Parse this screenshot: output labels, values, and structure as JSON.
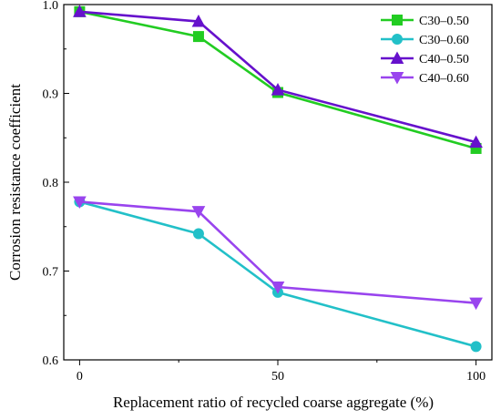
{
  "chart_data": {
    "type": "line",
    "title": "",
    "xlabel": "Replacement ratio of recycled coarse aggregate (%)",
    "ylabel": "Corrosion resistance coefficient",
    "x": [
      0,
      30,
      50,
      100
    ],
    "xticks": [
      0,
      50,
      100
    ],
    "xlim": [
      -4,
      104
    ],
    "ylim": [
      0.6,
      1.0
    ],
    "yticks": [
      0.6,
      0.7,
      0.8,
      0.9,
      1.0
    ],
    "ytick_labels": [
      "0.6",
      "0.7",
      "0.8",
      "0.9",
      "1.0"
    ],
    "grid": false,
    "legend_position": "top-right",
    "series": [
      {
        "name": "C30–0.50",
        "color": "#22cc22",
        "marker": "square",
        "values": [
          0.992,
          0.964,
          0.901,
          0.838
        ]
      },
      {
        "name": "C30–0.60",
        "color": "#22c0c8",
        "marker": "circle",
        "values": [
          0.778,
          0.742,
          0.676,
          0.615
        ]
      },
      {
        "name": "C40–0.50",
        "color": "#6611cc",
        "marker": "triangle-up",
        "values": [
          0.992,
          0.981,
          0.904,
          0.845
        ]
      },
      {
        "name": "C40–0.60",
        "color": "#9944ee",
        "marker": "triangle-down",
        "values": [
          0.778,
          0.767,
          0.682,
          0.664
        ]
      }
    ]
  }
}
